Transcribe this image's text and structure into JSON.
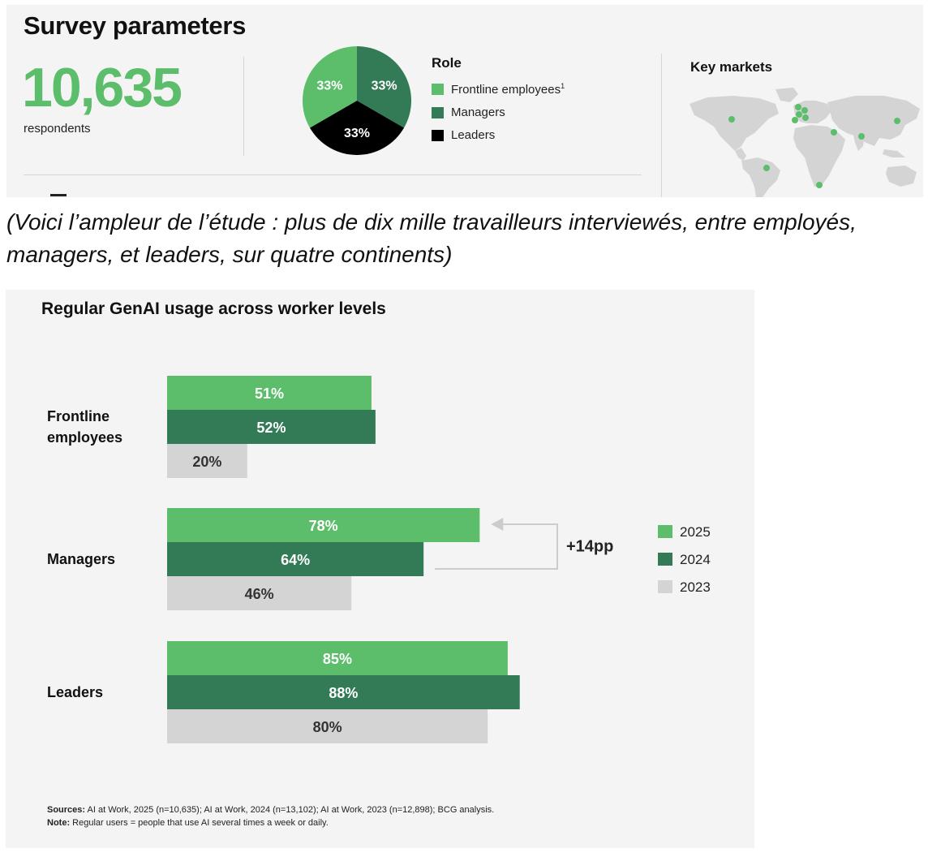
{
  "survey": {
    "title": "Survey parameters",
    "respondents_count": "10,635",
    "respondents_label": "respondents",
    "role": {
      "title": "Role",
      "slices": [
        {
          "label": "Frontline employees",
          "footnote": "1",
          "value": 33,
          "display": "33%",
          "color": "#5cbd6b"
        },
        {
          "label": "Managers",
          "value": 33,
          "display": "33%",
          "color": "#337a56"
        },
        {
          "label": "Leaders",
          "value": 33,
          "display": "33%",
          "color": "#000000"
        }
      ]
    },
    "key_markets_title": "Key markets",
    "map_land_color": "#d4d4d4",
    "map_dot_color": "#5cbd6b"
  },
  "caption": "(Voici l’ampleur de l’étude : plus de dix mille travailleurs interviewés, entre employés, managers, et leaders, sur quatre continents)",
  "chart_data": {
    "type": "bar",
    "orientation": "horizontal",
    "title": "Regular GenAI usage across worker levels",
    "categories": [
      "Frontline employees",
      "Managers",
      "Leaders"
    ],
    "category_lines": [
      [
        "Frontline",
        "employees"
      ],
      [
        "Managers"
      ],
      [
        "Leaders"
      ]
    ],
    "series": [
      {
        "name": "2025",
        "values": [
          51,
          78,
          85
        ],
        "color": "#5cbd6b",
        "label_color": "#ffffff"
      },
      {
        "name": "2024",
        "values": [
          52,
          64,
          88
        ],
        "color": "#337a56",
        "label_color": "#ffffff"
      },
      {
        "name": "2023",
        "values": [
          20,
          46,
          80
        ],
        "color": "#d4d4d4",
        "label_color": "#333333"
      }
    ],
    "value_suffix": "%",
    "annotation": {
      "text": "+14pp",
      "category": "Managers",
      "from_series": "2024",
      "to_series": "2025"
    },
    "legend_position": "right",
    "grid": false,
    "xlim": [
      0,
      100
    ]
  },
  "notes": {
    "sources_label": "Sources:",
    "sources_text": "AI at Work, 2025 (n=10,635);  AI at Work, 2024 (n=13,102); AI at Work, 2023 (n=12,898); BCG analysis.",
    "note_label": "Note:",
    "note_text": "Regular users = people that use AI several times a week or daily."
  }
}
